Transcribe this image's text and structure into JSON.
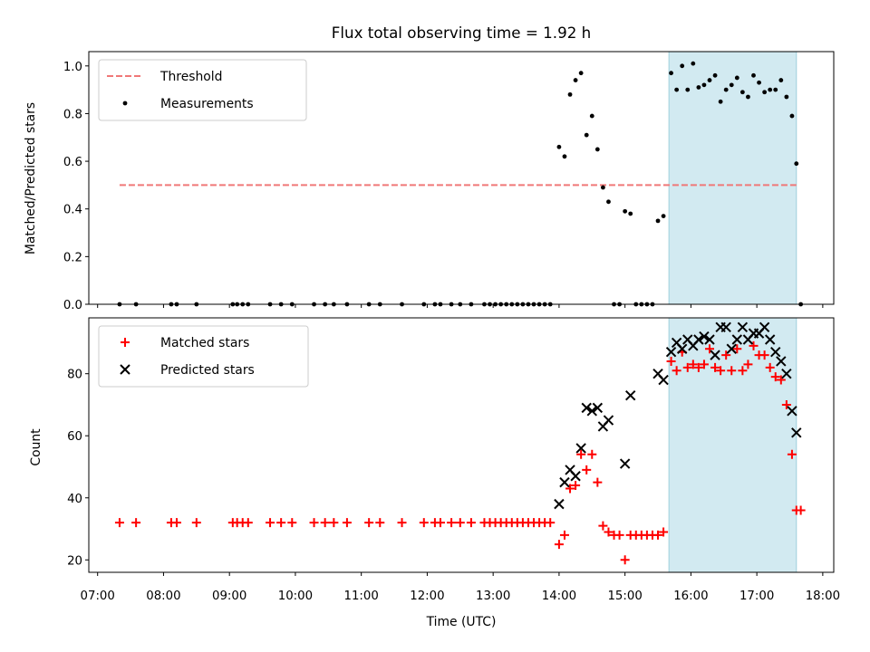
{
  "chart_data": [
    {
      "type": "scatter",
      "title": "Flux total observing time = 1.92 h",
      "xlabel": "",
      "ylabel": "Matched/Predicted stars",
      "xlim": [
        "07:00",
        "18:00"
      ],
      "ylim": [
        0,
        1.06
      ],
      "yticks": [
        "0.0",
        "0.2",
        "0.4",
        "0.6",
        "0.8",
        "1.0"
      ],
      "legend": {
        "position": "top-left",
        "entries": [
          "Threshold",
          "Measurements"
        ]
      },
      "highlight_span": [
        "15:40",
        "17:36"
      ],
      "threshold": {
        "name": "Threshold",
        "value": 0.5,
        "x_range": [
          "07:20",
          "17:36"
        ],
        "color": "#f07878"
      },
      "series": [
        {
          "name": "Measurements",
          "color": "#000000",
          "points": [
            [
              "07:20",
              0
            ],
            [
              "07:35",
              0
            ],
            [
              "08:07",
              0
            ],
            [
              "08:12",
              0
            ],
            [
              "08:30",
              0
            ],
            [
              "09:03",
              0
            ],
            [
              "09:07",
              0
            ],
            [
              "09:12",
              0
            ],
            [
              "09:17",
              0
            ],
            [
              "09:37",
              0
            ],
            [
              "09:47",
              0
            ],
            [
              "09:57",
              0
            ],
            [
              "10:17",
              0
            ],
            [
              "10:27",
              0
            ],
            [
              "10:35",
              0
            ],
            [
              "10:47",
              0
            ],
            [
              "11:07",
              0
            ],
            [
              "11:17",
              0
            ],
            [
              "11:37",
              0
            ],
            [
              "11:57",
              0
            ],
            [
              "12:07",
              0
            ],
            [
              "12:12",
              0
            ],
            [
              "12:22",
              0
            ],
            [
              "12:30",
              0
            ],
            [
              "12:40",
              0
            ],
            [
              "12:52",
              0
            ],
            [
              "12:57",
              0
            ],
            [
              "13:02",
              0
            ],
            [
              "13:07",
              0
            ],
            [
              "13:12",
              0
            ],
            [
              "13:17",
              0
            ],
            [
              "13:22",
              0
            ],
            [
              "13:27",
              0
            ],
            [
              "13:32",
              0
            ],
            [
              "13:37",
              0
            ],
            [
              "13:42",
              0
            ],
            [
              "13:47",
              0
            ],
            [
              "13:52",
              0
            ],
            [
              "14:00",
              0.66
            ],
            [
              "14:05",
              0.62
            ],
            [
              "14:10",
              0.88
            ],
            [
              "14:15",
              0.94
            ],
            [
              "14:20",
              0.97
            ],
            [
              "14:25",
              0.71
            ],
            [
              "14:30",
              0.79
            ],
            [
              "14:35",
              0.65
            ],
            [
              "14:40",
              0.49
            ],
            [
              "14:45",
              0.43
            ],
            [
              "14:50",
              0
            ],
            [
              "14:55",
              0
            ],
            [
              "15:00",
              0.39
            ],
            [
              "15:05",
              0.38
            ],
            [
              "15:10",
              0
            ],
            [
              "15:15",
              0
            ],
            [
              "15:20",
              0
            ],
            [
              "15:25",
              0
            ],
            [
              "15:30",
              0.35
            ],
            [
              "15:35",
              0.37
            ],
            [
              "15:42",
              0.97
            ],
            [
              "15:47",
              0.9
            ],
            [
              "15:52",
              1.0
            ],
            [
              "15:57",
              0.9
            ],
            [
              "16:02",
              1.01
            ],
            [
              "16:07",
              0.91
            ],
            [
              "16:12",
              0.92
            ],
            [
              "16:17",
              0.94
            ],
            [
              "16:22",
              0.96
            ],
            [
              "16:27",
              0.85
            ],
            [
              "16:32",
              0.9
            ],
            [
              "16:37",
              0.92
            ],
            [
              "16:42",
              0.95
            ],
            [
              "16:47",
              0.89
            ],
            [
              "16:52",
              0.87
            ],
            [
              "16:57",
              0.96
            ],
            [
              "17:02",
              0.93
            ],
            [
              "17:07",
              0.89
            ],
            [
              "17:12",
              0.9
            ],
            [
              "17:17",
              0.9
            ],
            [
              "17:22",
              0.94
            ],
            [
              "17:27",
              0.87
            ],
            [
              "17:32",
              0.79
            ],
            [
              "17:36",
              0.59
            ],
            [
              "17:40",
              0
            ]
          ]
        }
      ]
    },
    {
      "type": "scatter",
      "title": "",
      "xlabel": "Time (UTC)",
      "ylabel": "Count",
      "xlim": [
        "07:00",
        "18:00"
      ],
      "ylim": [
        16,
        98
      ],
      "yticks": [
        "20",
        "40",
        "60",
        "80"
      ],
      "xticks": [
        "07:00",
        "08:00",
        "09:00",
        "10:00",
        "11:00",
        "12:00",
        "13:00",
        "14:00",
        "15:00",
        "16:00",
        "17:00",
        "18:00"
      ],
      "legend": {
        "position": "top-left",
        "entries": [
          "Matched stars",
          "Predicted stars"
        ]
      },
      "highlight_span": [
        "15:40",
        "17:36"
      ],
      "series": [
        {
          "name": "Matched stars",
          "marker": "plus",
          "color": "#ff0000",
          "points": [
            [
              "07:20",
              32
            ],
            [
              "07:35",
              32
            ],
            [
              "08:07",
              32
            ],
            [
              "08:12",
              32
            ],
            [
              "08:30",
              32
            ],
            [
              "09:03",
              32
            ],
            [
              "09:07",
              32
            ],
            [
              "09:12",
              32
            ],
            [
              "09:17",
              32
            ],
            [
              "09:37",
              32
            ],
            [
              "09:47",
              32
            ],
            [
              "09:57",
              32
            ],
            [
              "10:17",
              32
            ],
            [
              "10:27",
              32
            ],
            [
              "10:35",
              32
            ],
            [
              "10:47",
              32
            ],
            [
              "11:07",
              32
            ],
            [
              "11:17",
              32
            ],
            [
              "11:37",
              32
            ],
            [
              "11:57",
              32
            ],
            [
              "12:07",
              32
            ],
            [
              "12:12",
              32
            ],
            [
              "12:22",
              32
            ],
            [
              "12:30",
              32
            ],
            [
              "12:40",
              32
            ],
            [
              "12:52",
              32
            ],
            [
              "12:57",
              32
            ],
            [
              "13:02",
              32
            ],
            [
              "13:07",
              32
            ],
            [
              "13:12",
              32
            ],
            [
              "13:17",
              32
            ],
            [
              "13:22",
              32
            ],
            [
              "13:27",
              32
            ],
            [
              "13:32",
              32
            ],
            [
              "13:37",
              32
            ],
            [
              "13:42",
              32
            ],
            [
              "13:47",
              32
            ],
            [
              "13:52",
              32
            ],
            [
              "14:00",
              25
            ],
            [
              "14:05",
              28
            ],
            [
              "14:10",
              43
            ],
            [
              "14:15",
              44
            ],
            [
              "14:20",
              54
            ],
            [
              "14:25",
              49
            ],
            [
              "14:30",
              54
            ],
            [
              "14:35",
              45
            ],
            [
              "14:40",
              31
            ],
            [
              "14:45",
              29
            ],
            [
              "14:50",
              28
            ],
            [
              "14:55",
              28
            ],
            [
              "15:00",
              20
            ],
            [
              "15:05",
              28
            ],
            [
              "15:10",
              28
            ],
            [
              "15:15",
              28
            ],
            [
              "15:20",
              28
            ],
            [
              "15:25",
              28
            ],
            [
              "15:30",
              28
            ],
            [
              "15:35",
              29
            ],
            [
              "15:42",
              84
            ],
            [
              "15:47",
              81
            ],
            [
              "15:52",
              87
            ],
            [
              "15:57",
              82
            ],
            [
              "16:02",
              83
            ],
            [
              "16:07",
              82
            ],
            [
              "16:12",
              83
            ],
            [
              "16:17",
              88
            ],
            [
              "16:22",
              82
            ],
            [
              "16:27",
              81
            ],
            [
              "16:32",
              86
            ],
            [
              "16:37",
              81
            ],
            [
              "16:42",
              88
            ],
            [
              "16:47",
              81
            ],
            [
              "16:52",
              83
            ],
            [
              "16:57",
              89
            ],
            [
              "17:02",
              86
            ],
            [
              "17:07",
              86
            ],
            [
              "17:12",
              82
            ],
            [
              "17:17",
              79
            ],
            [
              "17:22",
              78
            ],
            [
              "17:27",
              70
            ],
            [
              "17:32",
              54
            ],
            [
              "17:36",
              36
            ],
            [
              "17:40",
              36
            ]
          ]
        },
        {
          "name": "Predicted stars",
          "marker": "x",
          "color": "#000000",
          "points": [
            [
              "14:00",
              38
            ],
            [
              "14:05",
              45
            ],
            [
              "14:10",
              49
            ],
            [
              "14:15",
              47
            ],
            [
              "14:20",
              56
            ],
            [
              "14:25",
              69
            ],
            [
              "14:30",
              68
            ],
            [
              "14:35",
              69
            ],
            [
              "14:40",
              63
            ],
            [
              "14:45",
              65
            ],
            [
              "15:00",
              51
            ],
            [
              "15:05",
              73
            ],
            [
              "15:30",
              80
            ],
            [
              "15:35",
              78
            ],
            [
              "15:42",
              87
            ],
            [
              "15:47",
              90
            ],
            [
              "15:52",
              88
            ],
            [
              "15:57",
              91
            ],
            [
              "16:02",
              89
            ],
            [
              "16:07",
              91
            ],
            [
              "16:12",
              92
            ],
            [
              "16:17",
              91
            ],
            [
              "16:22",
              86
            ],
            [
              "16:27",
              95
            ],
            [
              "16:32",
              95
            ],
            [
              "16:37",
              88
            ],
            [
              "16:42",
              91
            ],
            [
              "16:47",
              95
            ],
            [
              "16:52",
              91
            ],
            [
              "16:57",
              93
            ],
            [
              "17:02",
              93
            ],
            [
              "17:07",
              95
            ],
            [
              "17:12",
              91
            ],
            [
              "17:17",
              87
            ],
            [
              "17:22",
              84
            ],
            [
              "17:27",
              80
            ],
            [
              "17:32",
              68
            ],
            [
              "17:36",
              61
            ]
          ]
        }
      ]
    }
  ]
}
